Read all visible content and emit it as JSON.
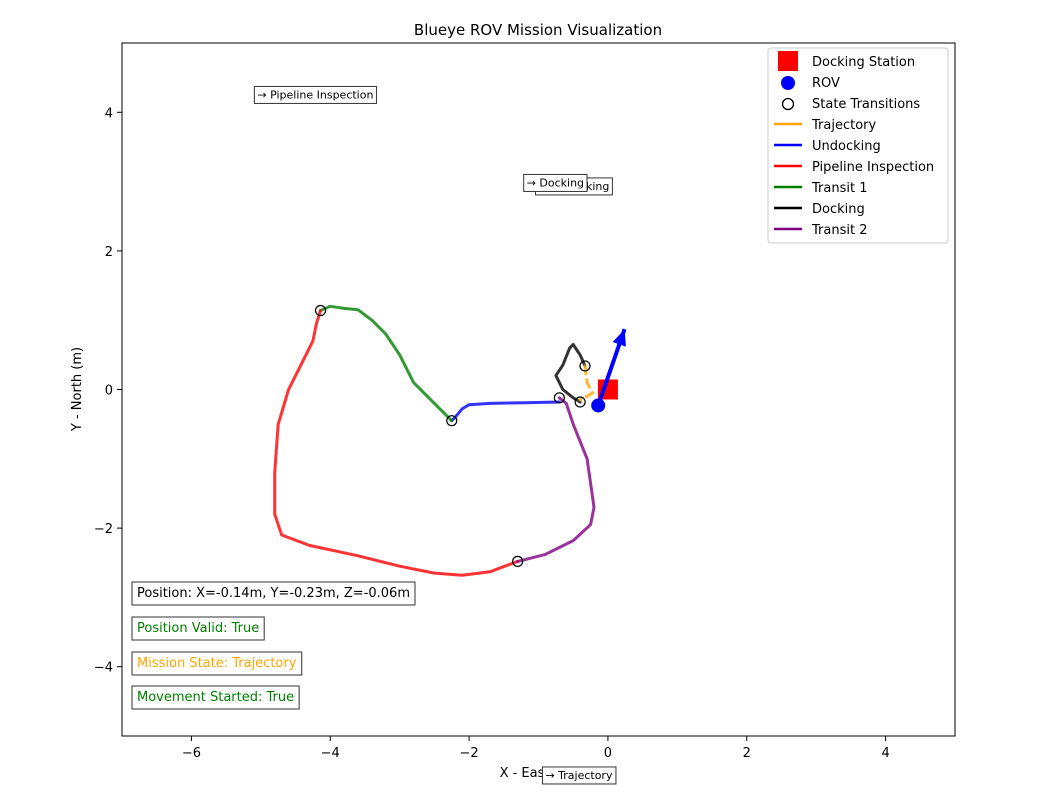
{
  "chart_data": {
    "type": "line",
    "title": "Blueye ROV Mission Visualization",
    "xlabel": "X - East (m)",
    "ylabel": "Y - North (m)",
    "xlim": [
      -7,
      5
    ],
    "ylim": [
      -5,
      5
    ],
    "xticks": [
      -6,
      -4,
      -2,
      0,
      2,
      4
    ],
    "yticks": [
      -4,
      -2,
      0,
      2,
      4
    ],
    "xtick_labels": [
      "−6",
      "−4",
      "−2",
      "0",
      "2",
      "4"
    ],
    "ytick_labels": [
      "−4",
      "−2",
      "0",
      "2",
      "4"
    ],
    "grid": false,
    "legend_position": "top-right",
    "legend": [
      {
        "label": "Docking Station",
        "kind": "square",
        "color": "#ff0000"
      },
      {
        "label": "ROV",
        "kind": "circle",
        "color": "#0000ff"
      },
      {
        "label": "State Transitions",
        "kind": "ring",
        "color": "#000000"
      },
      {
        "label": "Trajectory",
        "kind": "line",
        "color": "#ffa500"
      },
      {
        "label": "Undocking",
        "kind": "line",
        "color": "#0000ff"
      },
      {
        "label": "Pipeline Inspection",
        "kind": "line",
        "color": "#ff0000"
      },
      {
        "label": "Transit 1",
        "kind": "line",
        "color": "#008000"
      },
      {
        "label": "Docking",
        "kind": "line",
        "color": "#000000"
      },
      {
        "label": "Transit 2",
        "kind": "line",
        "color": "#800080"
      }
    ],
    "series": [
      {
        "name": "Undocking",
        "color": "#0000ff",
        "points": [
          [
            -0.7,
            -0.18
          ],
          [
            -1.2,
            -0.19
          ],
          [
            -1.7,
            -0.2
          ],
          [
            -2.0,
            -0.22
          ],
          [
            -2.1,
            -0.28
          ],
          [
            -2.2,
            -0.4
          ],
          [
            -2.25,
            -0.45
          ]
        ]
      },
      {
        "name": "Transit 1",
        "color": "#008000",
        "points": [
          [
            -2.25,
            -0.45
          ],
          [
            -2.5,
            -0.2
          ],
          [
            -2.8,
            0.1
          ],
          [
            -3.0,
            0.5
          ],
          [
            -3.2,
            0.8
          ],
          [
            -3.4,
            1.0
          ],
          [
            -3.6,
            1.15
          ],
          [
            -3.8,
            1.17
          ],
          [
            -4.0,
            1.2
          ],
          [
            -4.14,
            1.14
          ]
        ]
      },
      {
        "name": "Pipeline Inspection",
        "color": "#ff0000",
        "points": [
          [
            -4.14,
            1.14
          ],
          [
            -4.2,
            0.95
          ],
          [
            -4.25,
            0.7
          ],
          [
            -4.4,
            0.4
          ],
          [
            -4.6,
            0.0
          ],
          [
            -4.75,
            -0.5
          ],
          [
            -4.8,
            -1.2
          ],
          [
            -4.8,
            -1.8
          ],
          [
            -4.7,
            -2.1
          ],
          [
            -4.3,
            -2.25
          ],
          [
            -3.6,
            -2.4
          ],
          [
            -3.0,
            -2.55
          ],
          [
            -2.5,
            -2.65
          ],
          [
            -2.1,
            -2.68
          ],
          [
            -1.7,
            -2.63
          ],
          [
            -1.3,
            -2.48
          ]
        ]
      },
      {
        "name": "Transit 2",
        "color": "#800080",
        "points": [
          [
            -1.3,
            -2.48
          ],
          [
            -0.9,
            -2.38
          ],
          [
            -0.5,
            -2.18
          ],
          [
            -0.25,
            -1.95
          ],
          [
            -0.2,
            -1.7
          ],
          [
            -0.3,
            -1.0
          ],
          [
            -0.5,
            -0.5
          ],
          [
            -0.6,
            -0.2
          ],
          [
            -0.7,
            -0.12
          ]
        ]
      },
      {
        "name": "Docking",
        "color": "#000000",
        "points": [
          [
            -0.4,
            -0.18
          ],
          [
            -0.5,
            -0.12
          ],
          [
            -0.65,
            0.0
          ],
          [
            -0.75,
            0.2
          ],
          [
            -0.65,
            0.35
          ],
          [
            -0.55,
            0.6
          ],
          [
            -0.5,
            0.65
          ],
          [
            -0.4,
            0.5
          ],
          [
            -0.33,
            0.34
          ]
        ]
      },
      {
        "name": "Trajectory",
        "color": "#ffa500",
        "points": [
          [
            -0.33,
            0.34
          ],
          [
            -0.3,
            0.1
          ],
          [
            -0.22,
            -0.05
          ],
          [
            -0.4,
            -0.15
          ]
        ]
      }
    ],
    "docking_station": [
      0.0,
      0.0
    ],
    "rov": [
      -0.14,
      -0.23
    ],
    "heading_arrow": {
      "dx": 0.38,
      "dy": 1.1,
      "color": "#0000ff"
    },
    "state_transitions": [
      [
        -0.7,
        -0.12
      ],
      [
        -2.25,
        -0.45
      ],
      [
        -4.14,
        1.14
      ],
      [
        -1.3,
        -2.48
      ],
      [
        -0.4,
        -0.18
      ],
      [
        -0.33,
        0.34
      ]
    ],
    "annotations": [
      {
        "text": "→ Pipeline Inspection",
        "x": -5.05,
        "y": 4.2
      },
      {
        "text": "→ Undocking",
        "x": -1.0,
        "y": 2.88
      },
      {
        "text": "→ Docking",
        "x": -1.17,
        "y": 2.93
      },
      {
        "text": "→ Trajectory",
        "x": -0.9,
        "y": -5.62
      }
    ],
    "status": [
      {
        "text": "Position: X=-0.14m, Y=-0.23m, Z=-0.06m",
        "color": "#000000"
      },
      {
        "text": "Position Valid: True",
        "color": "#008000"
      },
      {
        "text": "Mission State: Trajectory",
        "color": "#ffa500"
      },
      {
        "text": "Movement Started: True",
        "color": "#008000"
      }
    ]
  }
}
